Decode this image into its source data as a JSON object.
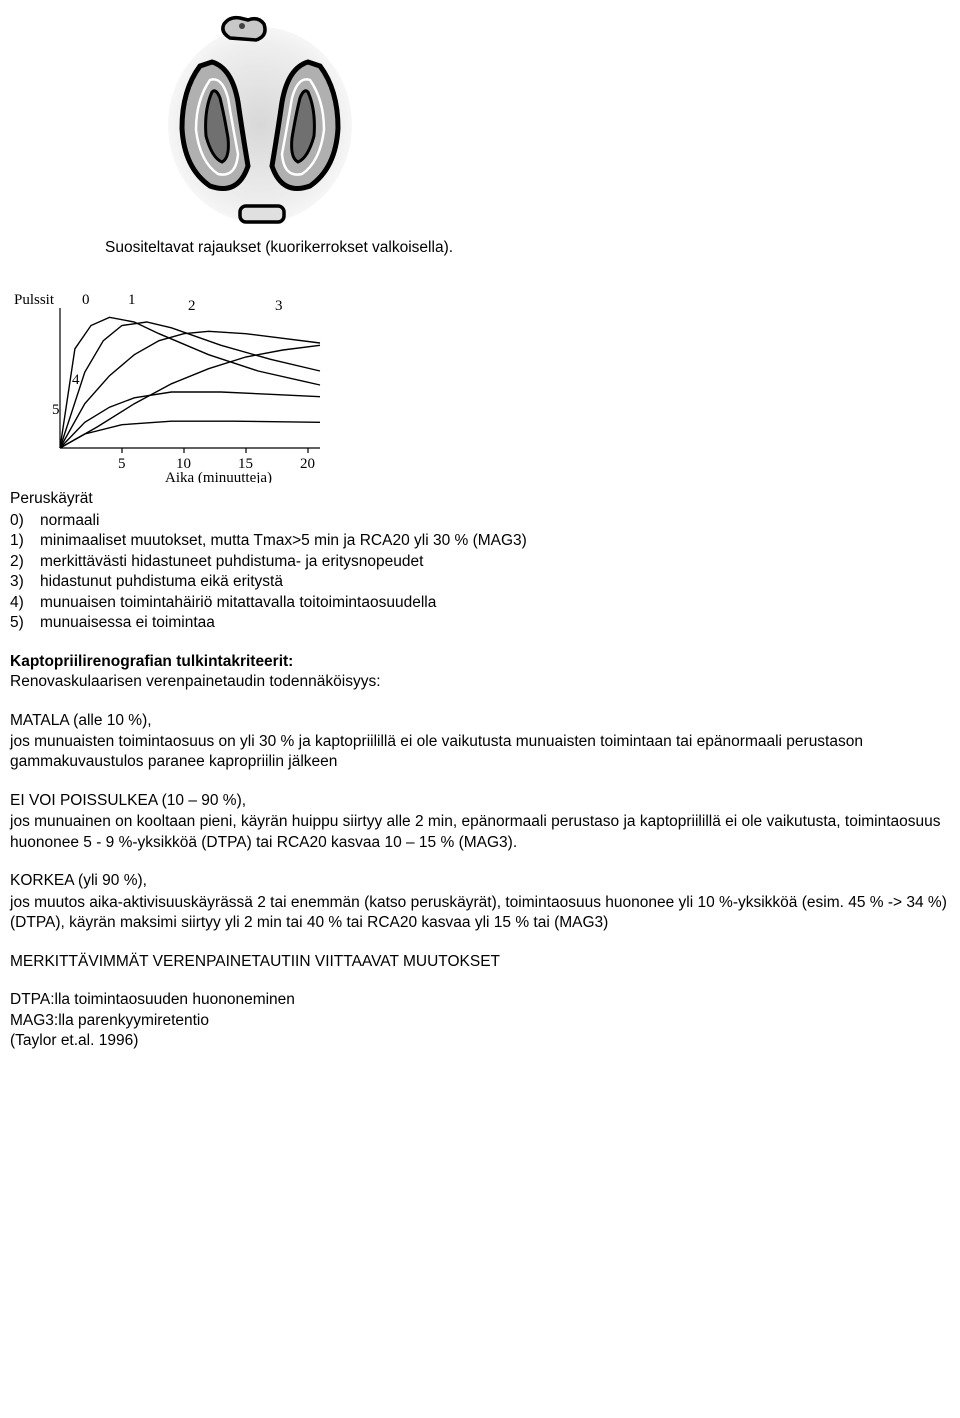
{
  "figure1": {
    "caption": "Suositeltavat rajaukset (kuorikerrokset valkoisella).",
    "svg_bg": "#f0f0f0",
    "outline_color": "#000000",
    "inner_color": "#ffffff"
  },
  "figure2": {
    "ylabel": "Pulssit",
    "xlabel": "Aika (minuutteja)",
    "ticks": [
      "5",
      "10",
      "15",
      "20"
    ],
    "curve_labels": [
      "0",
      "1",
      "2",
      "3",
      "4",
      "5"
    ],
    "curves": {
      "0": [
        [
          0,
          0
        ],
        [
          1.2,
          85
        ],
        [
          2.5,
          105
        ],
        [
          4,
          112
        ],
        [
          6,
          108
        ],
        [
          8,
          98
        ],
        [
          12,
          80
        ],
        [
          16,
          66
        ],
        [
          21,
          54
        ]
      ],
      "1": [
        [
          0,
          0
        ],
        [
          2,
          65
        ],
        [
          3.5,
          92
        ],
        [
          5,
          105
        ],
        [
          7,
          108
        ],
        [
          9,
          103
        ],
        [
          13,
          88
        ],
        [
          17,
          76
        ],
        [
          21,
          66
        ]
      ],
      "2": [
        [
          0,
          0
        ],
        [
          2,
          38
        ],
        [
          4,
          62
        ],
        [
          6,
          80
        ],
        [
          8,
          92
        ],
        [
          10,
          98
        ],
        [
          12,
          100
        ],
        [
          15,
          98
        ],
        [
          18,
          94
        ],
        [
          21,
          90
        ]
      ],
      "3": [
        [
          0,
          0
        ],
        [
          3,
          18
        ],
        [
          6,
          38
        ],
        [
          9,
          55
        ],
        [
          12,
          68
        ],
        [
          15,
          78
        ],
        [
          18,
          84
        ],
        [
          21,
          88
        ]
      ],
      "4": [
        [
          0,
          0
        ],
        [
          2,
          22
        ],
        [
          4,
          35
        ],
        [
          6,
          43
        ],
        [
          9,
          48
        ],
        [
          13,
          48
        ],
        [
          17,
          46
        ],
        [
          21,
          44
        ]
      ],
      "5": [
        [
          0,
          0
        ],
        [
          2,
          12
        ],
        [
          5,
          20
        ],
        [
          9,
          23
        ],
        [
          14,
          23
        ],
        [
          21,
          22
        ]
      ]
    },
    "stroke": "#000000",
    "plot": {
      "x_min": 0,
      "x_max": 21,
      "y_min": 0,
      "y_max": 120
    }
  },
  "baseline": {
    "heading": "Peruskäyrät",
    "items": [
      {
        "num": "0)",
        "text": "normaali"
      },
      {
        "num": "1)",
        "text": "minimaaliset muutokset, mutta Tmax>5 min ja RCA20 yli 30 % (MAG3)"
      },
      {
        "num": "2)",
        "text": "merkittävästi hidastuneet puhdistuma- ja eritysnopeudet"
      },
      {
        "num": "3)",
        "text": "hidastunut puhdistuma eikä eritystä"
      },
      {
        "num": "4)",
        "text": "munuaisen toimintahäiriö mitattavalla toitoimintaosuudella"
      },
      {
        "num": "5)",
        "text": "munuaisessa ei toimintaa"
      }
    ]
  },
  "criteria": {
    "heading": "Kaptopriilirenografian tulkintakriteerit:",
    "sub": "Renovaskulaarisen verenpainetaudin todennäköisyys:"
  },
  "low": {
    "title": "MATALA (alle 10 %),",
    "body": "jos munuaisten toimintaosuus on yli 30 % ja kaptopriilillä ei ole vaikutusta munuaisten toimintaan tai epänormaali perustason gammakuvaustulos paranee kapropriilin jälkeen"
  },
  "mid": {
    "title": "EI VOI POISSULKEA (10 – 90 %),",
    "body": "jos munuainen on kooltaan pieni, käyrän huippu siirtyy alle 2 min, epänormaali perustaso ja kaptopriilillä ei ole vaikutusta, toimintaosuus huononee 5 - 9 %-yksikköä (DTPA) tai RCA20 kasvaa 10 – 15 % (MAG3)."
  },
  "high": {
    "title": "KORKEA (yli 90 %),",
    "body": "jos muutos aika-aktivisuuskäyrässä 2 tai enemmän (katso peruskäyrät), toimintaosuus huononee yli 10 %-yksikköä (esim. 45 % -> 34 %) (DTPA), käyrän maksimi siirtyy yli 2 min tai 40 % tai RCA20 kasvaa yli 15 % tai (MAG3)"
  },
  "major_heading": "MERKITTÄVIMMÄT VERENPAINETAUTIIN VIITTAAVAT MUUTOKSET",
  "footer": {
    "l1": "DTPA:lla toimintaosuuden huononeminen",
    "l2": "MAG3:lla parenkyymiretentio",
    "l3": "(Taylor et.al. 1996)"
  }
}
